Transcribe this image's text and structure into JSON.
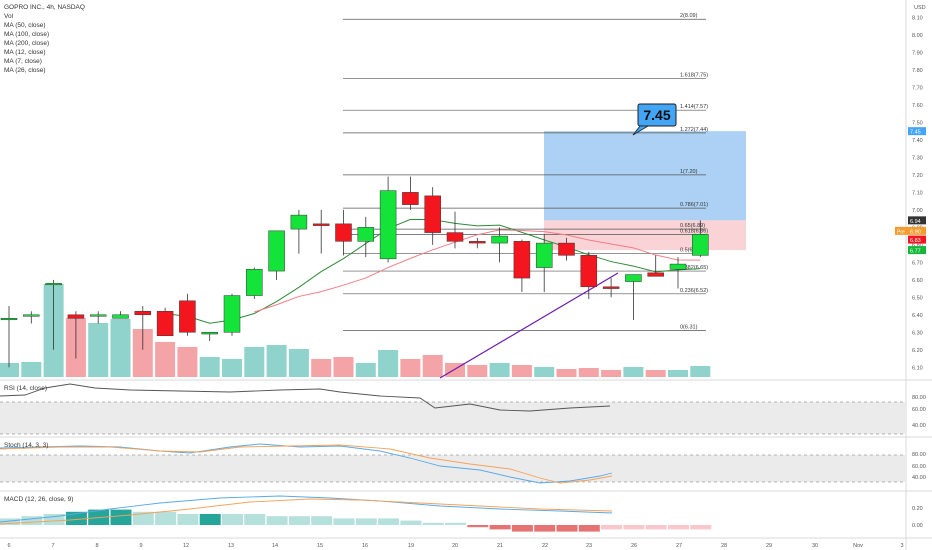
{
  "header": {
    "symbol": "GOPRO INC., 4h, NASDAQ",
    "indicators": [
      "Vol",
      "MA (50, close)",
      "MA (100, close)",
      "MA (200, close)",
      "MA (12, close)",
      "MA (7, close)",
      "MA (26, close)"
    ],
    "currency": "USD"
  },
  "colors": {
    "up": "#14e33a",
    "down": "#f4161f",
    "vol_up": "#8fd3cc",
    "vol_down": "#f4a3a6",
    "ma_green": "#2e8b3a",
    "ma_pink": "#f07f8a",
    "trend_purple": "#6a1ab3",
    "target_fill": "#9ec9f2",
    "stop_fill": "#f9d3d6",
    "target_badge": "#42a5f5",
    "rsi_line": "#555555",
    "stoch_k": "#5aa9e6",
    "stoch_d": "#f5a25a",
    "macd_line": "#5aa9e6",
    "signal_line": "#f5a25a"
  },
  "target_badge_label": "7.45",
  "panels": {
    "rsi_label": "RSI (14, close)",
    "stoch_label": "Stoch (14, 3, 3)",
    "macd_label": "MACD (12, 26, close, 9)"
  },
  "chart_data": {
    "type": "candlestick",
    "x_tick_labels": [
      "6",
      "7",
      "8",
      "9",
      "12",
      "13",
      "14",
      "15",
      "16",
      "19",
      "20",
      "21",
      "22",
      "23",
      "26",
      "27",
      "28",
      "29",
      "30",
      "Nov",
      "3"
    ],
    "price_axis": {
      "ylim": [
        6.05,
        8.2
      ],
      "ticks": [
        8.1,
        8.0,
        7.9,
        7.8,
        7.7,
        7.6,
        7.5,
        7.4,
        7.3,
        7.2,
        7.1,
        7.0,
        6.9,
        6.8,
        6.7,
        6.6,
        6.5,
        6.4,
        6.3,
        6.2,
        6.1
      ],
      "price_tags": [
        {
          "label": "7.45",
          "value": 7.45,
          "color": "#42a5f5"
        },
        {
          "label": "6.94",
          "value": 6.94,
          "color": "#333333"
        },
        {
          "label": "6.90",
          "value": 6.88,
          "color": "#f59c2e",
          "prefix": "Pre"
        },
        {
          "label": "6.83",
          "value": 6.83,
          "color": "#f4161f"
        },
        {
          "label": "6.77",
          "value": 6.77,
          "color": "#14b838"
        }
      ]
    },
    "candles": [
      {
        "o": 6.38,
        "h": 6.45,
        "l": 6.1,
        "c": 6.38
      },
      {
        "o": 6.4,
        "h": 6.42,
        "l": 6.35,
        "c": 6.4
      },
      {
        "o": 6.58,
        "h": 6.6,
        "l": 6.2,
        "c": 6.58
      },
      {
        "o": 6.4,
        "h": 6.42,
        "l": 6.15,
        "c": 6.38
      },
      {
        "o": 6.4,
        "h": 6.42,
        "l": 6.35,
        "c": 6.4
      },
      {
        "o": 6.38,
        "h": 6.42,
        "l": 6.38,
        "c": 6.4
      },
      {
        "o": 6.42,
        "h": 6.45,
        "l": 6.2,
        "c": 6.4
      },
      {
        "o": 6.42,
        "h": 6.44,
        "l": 6.28,
        "c": 6.28
      },
      {
        "o": 6.48,
        "h": 6.52,
        "l": 6.28,
        "c": 6.3
      },
      {
        "o": 6.29,
        "h": 6.3,
        "l": 6.25,
        "c": 6.3
      },
      {
        "o": 6.3,
        "h": 6.52,
        "l": 6.28,
        "c": 6.51
      },
      {
        "o": 6.51,
        "h": 6.67,
        "l": 6.49,
        "c": 6.66
      },
      {
        "o": 6.65,
        "h": 6.88,
        "l": 6.6,
        "c": 6.88
      },
      {
        "o": 6.89,
        "h": 7.0,
        "l": 6.75,
        "c": 6.97
      },
      {
        "o": 6.92,
        "h": 7.0,
        "l": 6.75,
        "c": 6.91
      },
      {
        "o": 6.92,
        "h": 7.0,
        "l": 6.74,
        "c": 6.82
      },
      {
        "o": 6.82,
        "h": 6.96,
        "l": 6.73,
        "c": 6.9
      },
      {
        "o": 6.72,
        "h": 7.19,
        "l": 6.7,
        "c": 7.11
      },
      {
        "o": 7.1,
        "h": 7.19,
        "l": 7.0,
        "c": 7.03
      },
      {
        "o": 7.08,
        "h": 7.13,
        "l": 6.8,
        "c": 6.87
      },
      {
        "o": 6.87,
        "h": 6.99,
        "l": 6.78,
        "c": 6.82
      },
      {
        "o": 6.82,
        "h": 6.84,
        "l": 6.78,
        "c": 6.81
      },
      {
        "o": 6.81,
        "h": 6.9,
        "l": 6.7,
        "c": 6.85
      },
      {
        "o": 6.82,
        "h": 6.83,
        "l": 6.53,
        "c": 6.61
      },
      {
        "o": 6.67,
        "h": 6.86,
        "l": 6.53,
        "c": 6.81
      },
      {
        "o": 6.81,
        "h": 6.84,
        "l": 6.71,
        "c": 6.74
      },
      {
        "o": 6.74,
        "h": 6.76,
        "l": 6.49,
        "c": 6.56
      },
      {
        "o": 6.56,
        "h": 6.61,
        "l": 6.5,
        "c": 6.55
      },
      {
        "o": 6.59,
        "h": 6.63,
        "l": 6.37,
        "c": 6.63
      },
      {
        "o": 6.64,
        "h": 6.74,
        "l": 6.63,
        "c": 6.62
      },
      {
        "o": 6.66,
        "h": 6.73,
        "l": 6.55,
        "c": 6.69
      },
      {
        "o": 6.74,
        "h": 6.94,
        "l": 6.73,
        "c": 6.86
      }
    ],
    "fib_levels": [
      {
        "label": "2(8.09)",
        "value": 8.09
      },
      {
        "label": "1.618(7.75)",
        "value": 7.75
      },
      {
        "label": "1.414(7.57)",
        "value": 7.57
      },
      {
        "label": "1.272(7.44)",
        "value": 7.44
      },
      {
        "label": "1(7.20)",
        "value": 7.2
      },
      {
        "label": "0.786(7.01)",
        "value": 7.01
      },
      {
        "label": "0.65(6.89)",
        "value": 6.89
      },
      {
        "label": "0.618(6.86)",
        "value": 6.86
      },
      {
        "label": "0.5(6.75)",
        "value": 6.75
      },
      {
        "label": "0.382(6.65)",
        "value": 6.65
      },
      {
        "label": "0.236(6.52)",
        "value": 6.52
      },
      {
        "label": "0(6.31)",
        "value": 6.31
      }
    ],
    "position": {
      "target": 7.45,
      "entry": 6.94,
      "stop": 6.77
    },
    "rsi_axis": {
      "ticks": [
        80.0,
        60.0,
        40.0
      ]
    },
    "stoch_axis": {
      "ticks": [
        80.0,
        60.0,
        40.0
      ]
    },
    "macd_axis": {
      "ticks": [
        0.2,
        0.0
      ]
    }
  }
}
